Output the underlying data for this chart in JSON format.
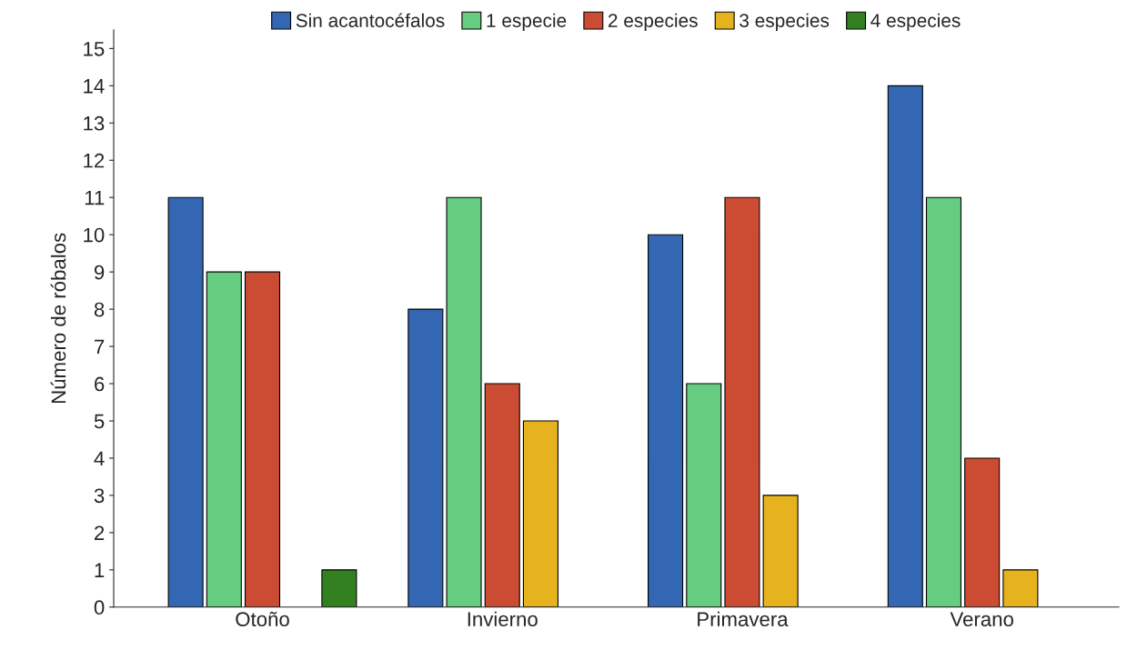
{
  "chart_data": {
    "type": "bar",
    "ylabel": "Número de róbalos",
    "categories": [
      "Otoño",
      "Invierno",
      "Primavera",
      "Verano"
    ],
    "series": [
      {
        "name": "Sin acantocéfalos",
        "color": "#3366b3",
        "values": [
          11,
          8,
          10,
          14
        ]
      },
      {
        "name": "1 especie",
        "color": "#66cc80",
        "values": [
          9,
          11,
          6,
          11
        ]
      },
      {
        "name": "2 especies",
        "color": "#cc4c33",
        "values": [
          9,
          6,
          11,
          4
        ]
      },
      {
        "name": "3 especies",
        "color": "#e6b31f",
        "values": [
          null,
          5,
          3,
          1
        ]
      },
      {
        "name": "4 especies",
        "color": "#338020",
        "values": [
          1,
          null,
          null,
          null
        ]
      }
    ],
    "ylim": [
      0,
      15.5
    ],
    "yticks": [
      0,
      1,
      2,
      3,
      4,
      5,
      6,
      7,
      8,
      9,
      10,
      11,
      12,
      13,
      14,
      15
    ],
    "grid": false,
    "legend": "top"
  }
}
